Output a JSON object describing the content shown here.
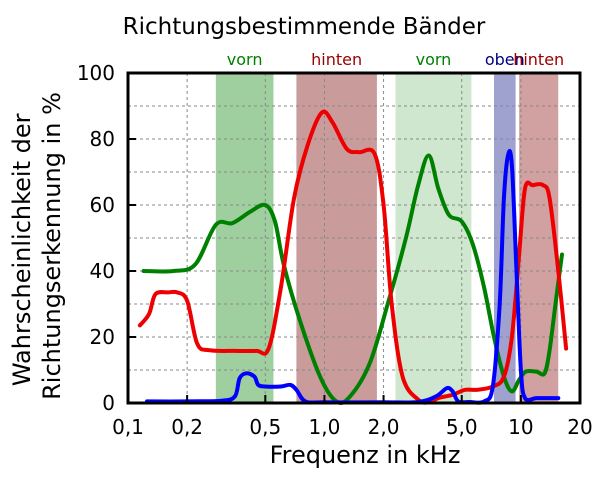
{
  "chart_data": {
    "type": "line",
    "title": "Richtungsbestimmende Bänder",
    "xlabel": "Frequenz in kHz",
    "ylabel_lines": [
      "Wahrscheinlichkeit der",
      "Richtungserkennung in %"
    ],
    "x_scale": "log",
    "xlim": [
      0.1,
      20
    ],
    "ylim": [
      0,
      100
    ],
    "grid": true,
    "x_ticks": [
      {
        "value": 0.1,
        "label": "0,1"
      },
      {
        "value": 0.2,
        "label": "0,2"
      },
      {
        "value": 0.5,
        "label": "0,5"
      },
      {
        "value": 1.0,
        "label": "1,0"
      },
      {
        "value": 2.0,
        "label": "2,0"
      },
      {
        "value": 5.0,
        "label": "5,0"
      },
      {
        "value": 10,
        "label": "10"
      },
      {
        "value": 20,
        "label": "20"
      }
    ],
    "y_ticks": [
      {
        "value": 0,
        "label": "0"
      },
      {
        "value": 20,
        "label": "20"
      },
      {
        "value": 40,
        "label": "40"
      },
      {
        "value": 60,
        "label": "60"
      },
      {
        "value": 80,
        "label": "80"
      },
      {
        "value": 100,
        "label": "100"
      }
    ],
    "bands": [
      {
        "label": "vorn",
        "x_start": 0.28,
        "x_end": 0.55,
        "fill": "#9fce9f",
        "label_color": "#008000"
      },
      {
        "label": "hinten",
        "x_start": 0.72,
        "x_end": 1.85,
        "fill": "#c99b9b",
        "label_color": "#990000"
      },
      {
        "label": "vorn",
        "x_start": 2.3,
        "x_end": 5.6,
        "fill": "#cfe6cf",
        "label_color": "#008000"
      },
      {
        "label": "oben",
        "x_start": 7.3,
        "x_end": 9.4,
        "fill": "#9fa1cf",
        "label_color": "#000080"
      },
      {
        "label": "hinten",
        "x_start": 9.8,
        "x_end": 15.5,
        "fill": "#d1a0a0",
        "label_color": "#990000"
      }
    ],
    "series": [
      {
        "color": "#008000",
        "points": [
          [
            0.12,
            40
          ],
          [
            0.17,
            40
          ],
          [
            0.22,
            42
          ],
          [
            0.28,
            54
          ],
          [
            0.34,
            54.5
          ],
          [
            0.42,
            58
          ],
          [
            0.5,
            60
          ],
          [
            0.56,
            55
          ],
          [
            0.62,
            42
          ],
          [
            0.75,
            25
          ],
          [
            0.95,
            8
          ],
          [
            1.15,
            0.5
          ],
          [
            1.35,
            2
          ],
          [
            1.7,
            12
          ],
          [
            2.1,
            30
          ],
          [
            2.6,
            50
          ],
          [
            3.0,
            66
          ],
          [
            3.4,
            75
          ],
          [
            3.8,
            65
          ],
          [
            4.3,
            57
          ],
          [
            5.0,
            55
          ],
          [
            5.7,
            48
          ],
          [
            6.5,
            35
          ],
          [
            7.3,
            20
          ],
          [
            8.2,
            8
          ],
          [
            9.0,
            3.5
          ],
          [
            9.8,
            7
          ],
          [
            10.6,
            9.5
          ],
          [
            12.0,
            9.5
          ],
          [
            13.2,
            9
          ],
          [
            14.0,
            16
          ],
          [
            15.0,
            30
          ],
          [
            16.2,
            45
          ]
        ]
      },
      {
        "color": "#ee0000",
        "points": [
          [
            0.115,
            23.5
          ],
          [
            0.128,
            27
          ],
          [
            0.138,
            33
          ],
          [
            0.16,
            33.5
          ],
          [
            0.178,
            33.5
          ],
          [
            0.2,
            31
          ],
          [
            0.225,
            18
          ],
          [
            0.26,
            16
          ],
          [
            0.35,
            15.8
          ],
          [
            0.45,
            15.8
          ],
          [
            0.52,
            16.5
          ],
          [
            0.6,
            35
          ],
          [
            0.7,
            62
          ],
          [
            0.82,
            78
          ],
          [
            0.97,
            88
          ],
          [
            1.1,
            85
          ],
          [
            1.3,
            77
          ],
          [
            1.5,
            76
          ],
          [
            1.8,
            75.5
          ],
          [
            2.0,
            60
          ],
          [
            2.2,
            30
          ],
          [
            2.5,
            8
          ],
          [
            3.0,
            1
          ],
          [
            3.4,
            0.2
          ],
          [
            3.8,
            1.5
          ],
          [
            4.5,
            2.5
          ],
          [
            5.2,
            4
          ],
          [
            6.0,
            4
          ],
          [
            7.2,
            5
          ],
          [
            8.2,
            8
          ],
          [
            9.0,
            20
          ],
          [
            9.8,
            45
          ],
          [
            10.5,
            65
          ],
          [
            11.5,
            66
          ],
          [
            13.0,
            66
          ],
          [
            14.0,
            62
          ],
          [
            15.5,
            40
          ],
          [
            17.0,
            16.5
          ]
        ]
      },
      {
        "color": "#0000ff",
        "points": [
          [
            0.125,
            0.5
          ],
          [
            0.2,
            0.5
          ],
          [
            0.3,
            0.7
          ],
          [
            0.35,
            2
          ],
          [
            0.37,
            7.5
          ],
          [
            0.4,
            9
          ],
          [
            0.44,
            8
          ],
          [
            0.46,
            5.5
          ],
          [
            0.5,
            5
          ],
          [
            0.6,
            5
          ],
          [
            0.67,
            5.5
          ],
          [
            0.72,
            4
          ],
          [
            0.8,
            0.5
          ],
          [
            1.0,
            0.2
          ],
          [
            2.0,
            0.2
          ],
          [
            3.0,
            0.3
          ],
          [
            3.7,
            2
          ],
          [
            4.2,
            4.5
          ],
          [
            4.5,
            3.5
          ],
          [
            4.8,
            0.5
          ],
          [
            5.5,
            0.3
          ],
          [
            6.5,
            0.5
          ],
          [
            7.2,
            5
          ],
          [
            7.8,
            30
          ],
          [
            8.2,
            62
          ],
          [
            8.6,
            75
          ],
          [
            9.0,
            72
          ],
          [
            9.5,
            40
          ],
          [
            10.0,
            10
          ],
          [
            10.5,
            1.5
          ],
          [
            12.0,
            1.5
          ],
          [
            14.0,
            1.5
          ],
          [
            15.5,
            1.5
          ]
        ]
      }
    ]
  },
  "colors": {
    "background": "#ffffff",
    "frame": "#000000",
    "grid": "#888888"
  }
}
